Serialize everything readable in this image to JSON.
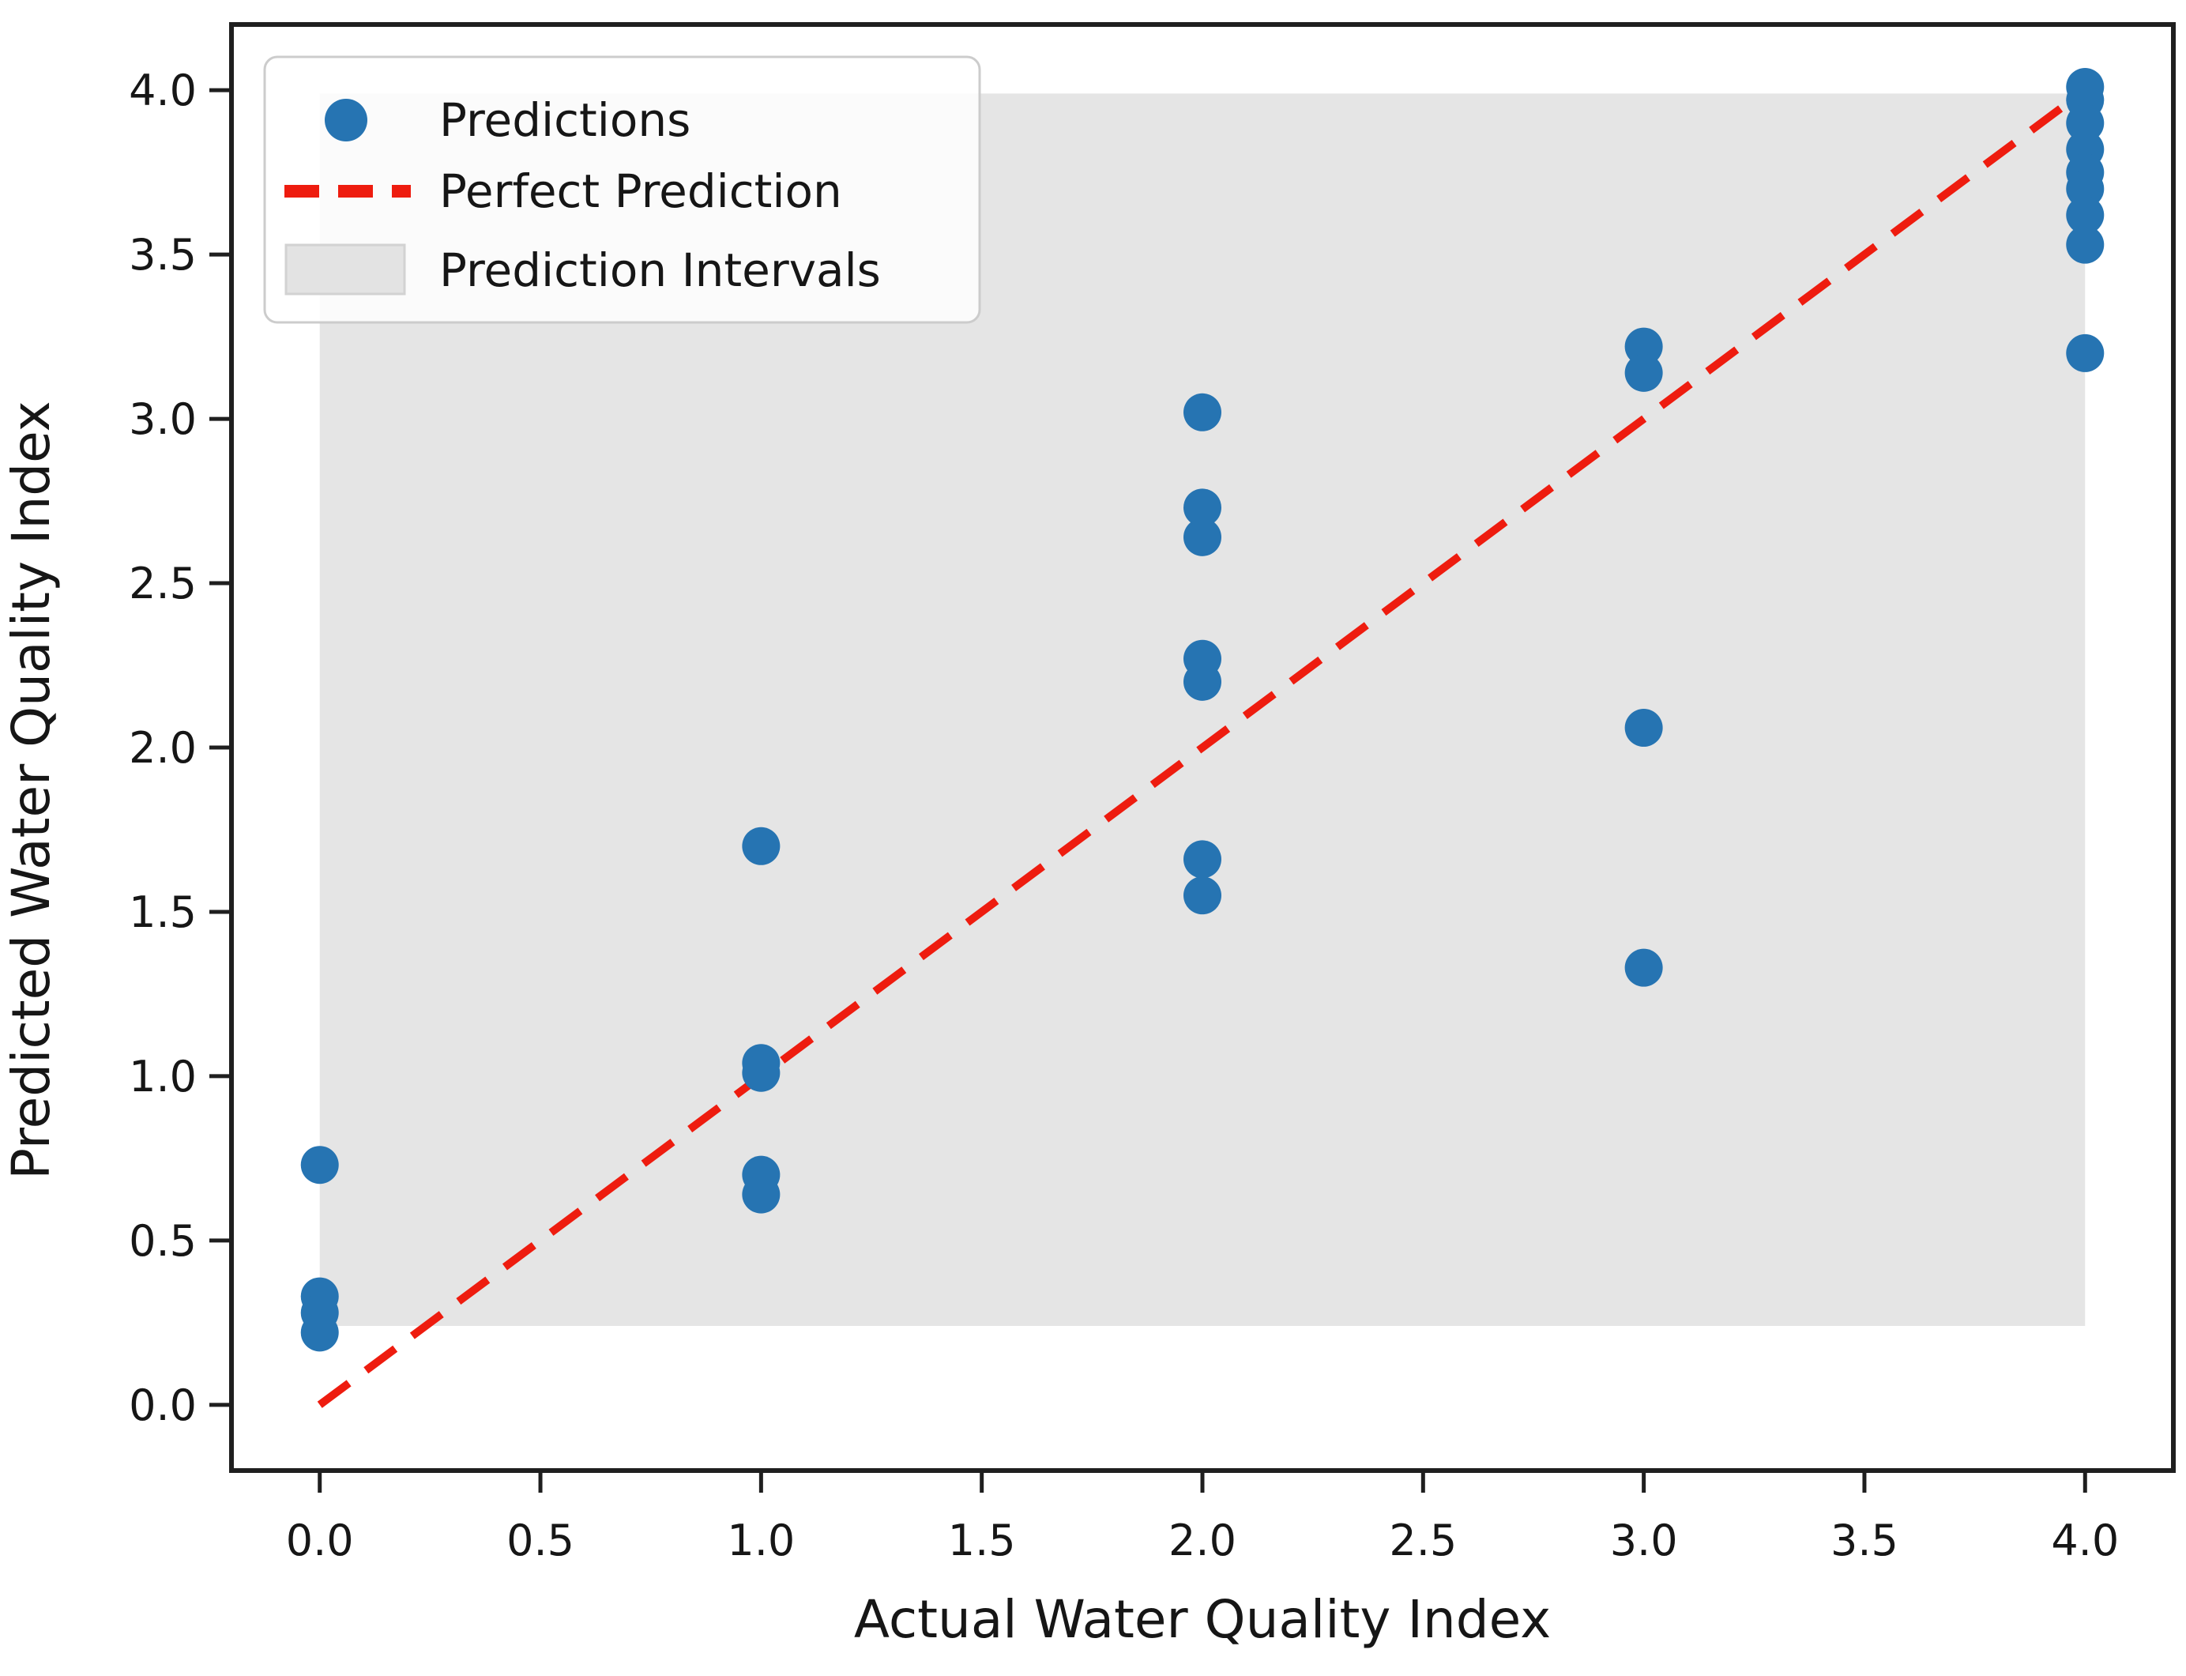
{
  "chart_data": {
    "type": "scatter",
    "title": "",
    "xlabel": "Actual Water Quality Index",
    "ylabel": "Predicted Water Quality Index",
    "xlim": [
      -0.2,
      4.2
    ],
    "ylim": [
      -0.2,
      4.2
    ],
    "xticks": [
      "0.0",
      "0.5",
      "1.0",
      "1.5",
      "2.0",
      "2.5",
      "3.0",
      "3.5",
      "4.0"
    ],
    "yticks": [
      "0.0",
      "0.5",
      "1.0",
      "1.5",
      "2.0",
      "2.5",
      "3.0",
      "3.5",
      "4.0"
    ],
    "grid": false,
    "legend": {
      "position": "upper-left",
      "entries": [
        {
          "label": "Predictions",
          "marker": "dot",
          "color": "#2674b2"
        },
        {
          "label": "Perfect Prediction",
          "marker": "dashed-line",
          "color": "#ee1c0f"
        },
        {
          "label": "Prediction Intervals",
          "marker": "filled-patch",
          "color": "#e3e3e3"
        }
      ]
    },
    "series": [
      {
        "name": "Predictions",
        "type": "scatter",
        "color": "#2674b2",
        "points": [
          [
            0,
            0.73
          ],
          [
            0,
            0.33
          ],
          [
            0,
            0.28
          ],
          [
            0,
            0.22
          ],
          [
            1,
            1.7
          ],
          [
            1,
            1.04
          ],
          [
            1,
            1.01
          ],
          [
            1,
            0.7
          ],
          [
            1,
            0.64
          ],
          [
            2,
            3.02
          ],
          [
            2,
            2.73
          ],
          [
            2,
            2.64
          ],
          [
            2,
            2.27
          ],
          [
            2,
            2.2
          ],
          [
            2,
            1.66
          ],
          [
            2,
            1.55
          ],
          [
            3,
            3.22
          ],
          [
            3,
            3.14
          ],
          [
            3,
            2.06
          ],
          [
            3,
            1.33
          ],
          [
            4,
            4.01
          ],
          [
            4,
            3.97
          ],
          [
            4,
            3.9
          ],
          [
            4,
            3.82
          ],
          [
            4,
            3.75
          ],
          [
            4,
            3.7
          ],
          [
            4,
            3.62
          ],
          [
            4,
            3.53
          ],
          [
            4,
            3.2
          ]
        ]
      },
      {
        "name": "Perfect Prediction",
        "type": "line",
        "style": "dashed",
        "color": "#ee1c0f",
        "x": [
          0,
          4
        ],
        "y": [
          0,
          4
        ]
      },
      {
        "name": "Prediction Intervals",
        "type": "band",
        "color": "#e5e5e5",
        "x_range": [
          0,
          4
        ],
        "y_range": [
          0.24,
          3.99
        ]
      }
    ]
  },
  "colors": {
    "scatter_blue": "#2674b2",
    "line_red": "#ee1c0f",
    "band_gray": "#e5e5e5",
    "spine": "#1f1f1f",
    "text": "#161616",
    "legend_border": "#cccccc"
  }
}
